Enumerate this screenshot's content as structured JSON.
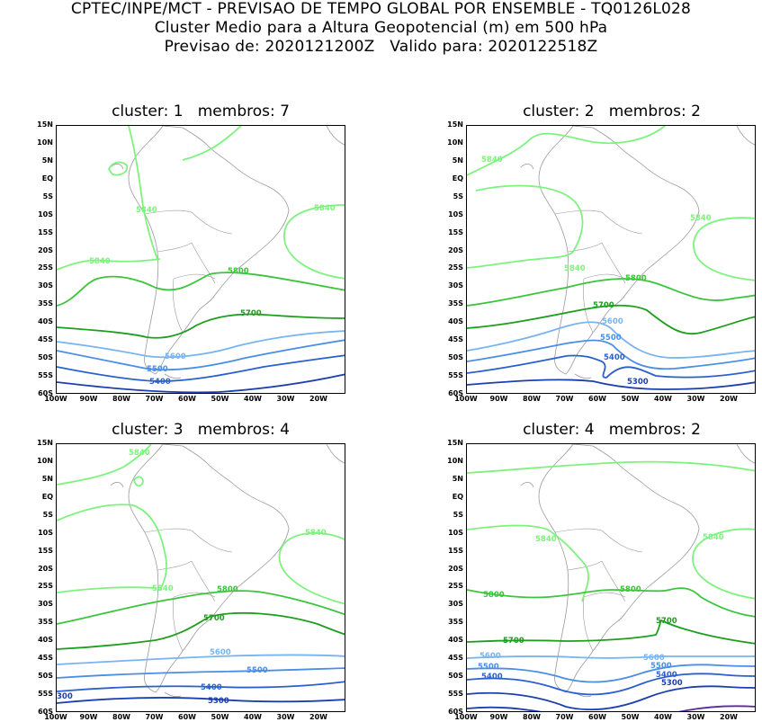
{
  "header": {
    "line1": "CPTEC/INPE/MCT - PREVISAO DE TEMPO GLOBAL POR ENSEMBLE - TQ0126L028",
    "line2": "Cluster Medio para a Altura Geopotencial (m) em 500 hPa",
    "line3": "Previsao de: 2020121200Z   Valido para: 2020122518Z"
  },
  "axes": {
    "lat_ticks": [
      "15N",
      "10N",
      "5N",
      "EQ",
      "5S",
      "10S",
      "15S",
      "20S",
      "25S",
      "30S",
      "35S",
      "40S",
      "45S",
      "50S",
      "55S",
      "60S"
    ],
    "lon_ticks": [
      "100W",
      "90W",
      "80W",
      "70W",
      "60W",
      "50W",
      "40W",
      "30W",
      "20W"
    ]
  },
  "colors": {
    "c5840": "#7ef27e",
    "c5800": "#3cc43c",
    "c5700": "#1e9e1e",
    "c5600": "#78b4f0",
    "c5500": "#4a8ee6",
    "c5400": "#2a5fd0",
    "c5300": "#1c3fae",
    "c5200": "#5a2aa0",
    "coast": "#9a9a9a"
  },
  "panels": [
    {
      "title": "cluster: 1   membros: 7",
      "labels": {
        "l5840a": "5840",
        "l5840b": "5840",
        "l5840c": "5840",
        "l5800": "5800",
        "l5700": "5700",
        "l5600": "5600",
        "l5500": "5500",
        "l5400": "5400"
      }
    },
    {
      "title": "cluster: 2   membros: 2",
      "labels": {
        "l5840a": "5840",
        "l5840b": "5840",
        "l5840c": "5840",
        "l5800": "5800",
        "l5700": "5700",
        "l5600": "5600",
        "l5500": "5500",
        "l5400": "5400",
        "l5300": "5300"
      }
    },
    {
      "title": "cluster: 3   membros: 4",
      "labels": {
        "l5840a": "5840",
        "l5840b": "5840",
        "l5840c": "5840",
        "l5800": "5800",
        "l5700": "5700",
        "l5600": "5600",
        "l5500": "5500",
        "l5400": "5400",
        "l5300": "5300",
        "l5300b": "300"
      }
    },
    {
      "title": "cluster: 4   membros: 2",
      "labels": {
        "l5840a": "5840",
        "l5840b": "5840",
        "l5800a": "5800",
        "l5800b": "5800",
        "l5700a": "5700",
        "l5700b": "5700",
        "l5600a": "5600",
        "l5600b": "5600",
        "l5500a": "5500",
        "l5500b": "5500",
        "l5400a": "5400",
        "l5400b": "5400",
        "l5300": "5300"
      }
    }
  ]
}
